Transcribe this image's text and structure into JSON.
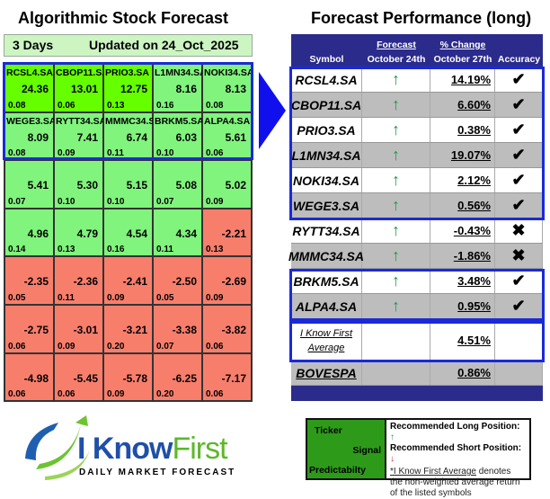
{
  "left": {
    "title": "Algorithmic Stock Forecast",
    "horizon": "3 Days",
    "updated": "Updated on 24_Oct_2025",
    "cells": [
      {
        "ticker": "RCSL4.SA",
        "signal": "24.36",
        "pred": "0.08",
        "color": "#66ff00"
      },
      {
        "ticker": "CBOP11.SA",
        "signal": "13.01",
        "pred": "0.06",
        "color": "#66ff00"
      },
      {
        "ticker": "PRIO3.SA",
        "signal": "12.75",
        "pred": "0.13",
        "color": "#66ff00"
      },
      {
        "ticker": "L1MN34.SA",
        "signal": "8.16",
        "pred": "0.16",
        "color": "#80f47c"
      },
      {
        "ticker": "NOKI34.SA",
        "signal": "8.13",
        "pred": "0.08",
        "color": "#80f47c"
      },
      {
        "ticker": "WEGE3.SA",
        "signal": "8.09",
        "pred": "0.08",
        "color": "#80f47c"
      },
      {
        "ticker": "RYTT34.SA",
        "signal": "7.41",
        "pred": "0.09",
        "color": "#80f47c"
      },
      {
        "ticker": "MMMC34.SA",
        "signal": "6.74",
        "pred": "0.11",
        "color": "#80f47c"
      },
      {
        "ticker": "BRKM5.SA",
        "signal": "6.03",
        "pred": "0.10",
        "color": "#80f47c"
      },
      {
        "ticker": "ALPA4.SA",
        "signal": "5.61",
        "pred": "0.06",
        "color": "#80f47c"
      },
      {
        "ticker": "",
        "signal": "5.41",
        "pred": "0.07",
        "color": "#80f47c"
      },
      {
        "ticker": "",
        "signal": "5.30",
        "pred": "0.10",
        "color": "#80f47c"
      },
      {
        "ticker": "",
        "signal": "5.15",
        "pred": "0.10",
        "color": "#80f47c"
      },
      {
        "ticker": "",
        "signal": "5.08",
        "pred": "0.07",
        "color": "#80f47c"
      },
      {
        "ticker": "",
        "signal": "5.02",
        "pred": "0.09",
        "color": "#80f47c"
      },
      {
        "ticker": "",
        "signal": "4.96",
        "pred": "0.14",
        "color": "#80f47c"
      },
      {
        "ticker": "",
        "signal": "4.79",
        "pred": "0.13",
        "color": "#80f47c"
      },
      {
        "ticker": "",
        "signal": "4.54",
        "pred": "0.16",
        "color": "#80f47c"
      },
      {
        "ticker": "",
        "signal": "4.34",
        "pred": "0.11",
        "color": "#80f47c"
      },
      {
        "ticker": "",
        "signal": "-2.21",
        "pred": "0.13",
        "color": "#f87e6c"
      },
      {
        "ticker": "",
        "signal": "-2.35",
        "pred": "0.05",
        "color": "#f87e6c"
      },
      {
        "ticker": "",
        "signal": "-2.36",
        "pred": "0.11",
        "color": "#f87e6c"
      },
      {
        "ticker": "",
        "signal": "-2.41",
        "pred": "0.09",
        "color": "#f87e6c"
      },
      {
        "ticker": "",
        "signal": "-2.50",
        "pred": "0.05",
        "color": "#f87e6c"
      },
      {
        "ticker": "",
        "signal": "-2.69",
        "pred": "0.09",
        "color": "#f87e6c"
      },
      {
        "ticker": "",
        "signal": "-2.75",
        "pred": "0.06",
        "color": "#f87e6c"
      },
      {
        "ticker": "",
        "signal": "-3.01",
        "pred": "0.09",
        "color": "#f87e6c"
      },
      {
        "ticker": "",
        "signal": "-3.21",
        "pred": "0.20",
        "color": "#f87e6c"
      },
      {
        "ticker": "",
        "signal": "-3.38",
        "pred": "0.07",
        "color": "#f87e6c"
      },
      {
        "ticker": "",
        "signal": "-3.82",
        "pred": "0.06",
        "color": "#f87e6c"
      },
      {
        "ticker": "",
        "signal": "-4.98",
        "pred": "0.06",
        "color": "#f87e6c"
      },
      {
        "ticker": "",
        "signal": "-5.45",
        "pred": "0.06",
        "color": "#f87e6c"
      },
      {
        "ticker": "",
        "signal": "-5.78",
        "pred": "0.09",
        "color": "#f87e6c"
      },
      {
        "ticker": "",
        "signal": "-6.25",
        "pred": "0.20",
        "color": "#f87e6c"
      },
      {
        "ticker": "",
        "signal": "-7.17",
        "pred": "0.06",
        "color": "#f87e6c"
      }
    ]
  },
  "right": {
    "title": "Forecast Performance (long)",
    "headers": {
      "symbol": "Symbol",
      "forecast_top": "Forecast",
      "forecast_bottom": "October 24th",
      "change_top": "% Change",
      "change_bottom": "October 27th",
      "accuracy": "Accuracy"
    },
    "rows": [
      {
        "symbol": "RCSL4.SA",
        "forecast": "↑",
        "change": "14.19%",
        "accuracy": "✔"
      },
      {
        "symbol": "CBOP11.SA",
        "forecast": "↑",
        "change": "6.60%",
        "accuracy": "✔"
      },
      {
        "symbol": "PRIO3.SA",
        "forecast": "↑",
        "change": "0.38%",
        "accuracy": "✔"
      },
      {
        "symbol": "L1MN34.SA",
        "forecast": "↑",
        "change": "19.07%",
        "accuracy": "✔"
      },
      {
        "symbol": "NOKI34.SA",
        "forecast": "↑",
        "change": "2.12%",
        "accuracy": "✔"
      },
      {
        "symbol": "WEGE3.SA",
        "forecast": "↑",
        "change": "0.56%",
        "accuracy": "✔"
      },
      {
        "symbol": "RYTT34.SA",
        "forecast": "↑",
        "change": "-0.43%",
        "accuracy": "✖"
      },
      {
        "symbol": "MMMC34.SA",
        "forecast": "↑",
        "change": "-1.86%",
        "accuracy": "✖"
      },
      {
        "symbol": "BRKM5.SA",
        "forecast": "↑",
        "change": "3.48%",
        "accuracy": "✔"
      },
      {
        "symbol": "ALPA4.SA",
        "forecast": "↑",
        "change": "0.95%",
        "accuracy": "✔"
      }
    ],
    "average": {
      "label": "I Know First Average",
      "change": "4.51%"
    },
    "index": {
      "label": "BOVESPA",
      "change": "0.86%"
    }
  },
  "legend": {
    "ticker": "Ticker",
    "signal": "Signal",
    "predictability": "Predictabilty",
    "long": "Recommended Long Position:",
    "short": "Recommended Short Position:",
    "long_icon": "↑",
    "short_icon": "↓",
    "note_link": "*I Know First Average",
    "note_rest": " denotes the non-weighted average return of the listed symbols"
  },
  "logo": {
    "brand1": "I Know",
    "brand2": "First",
    "tagline": "Daily Market Forecast"
  }
}
